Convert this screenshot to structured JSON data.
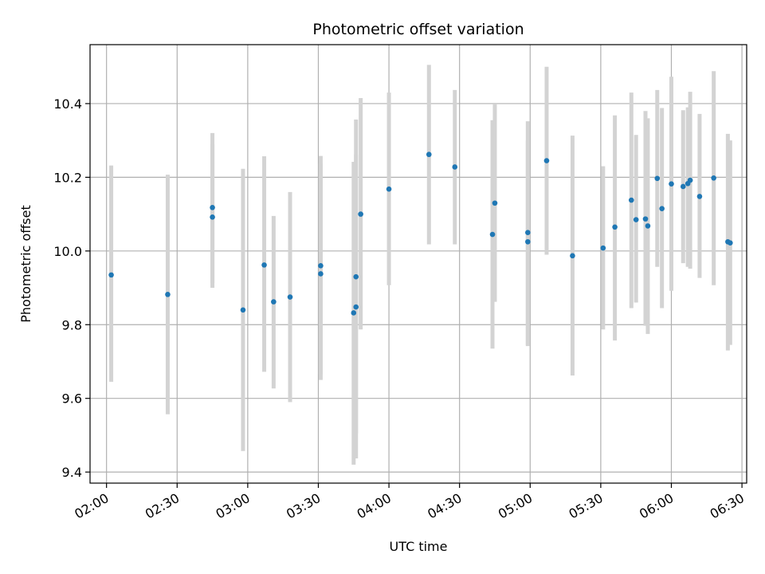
{
  "chart_data": {
    "type": "scatter",
    "title": "Photometric offset variation",
    "xlabel": "UTC time",
    "ylabel": "Photometric offset",
    "x_unit": "UTC time (HH:MM)",
    "xlim": [
      "01:53",
      "06:32"
    ],
    "ylim": [
      9.37,
      10.56
    ],
    "x_ticks": [
      "02:00",
      "02:30",
      "03:00",
      "03:30",
      "04:00",
      "04:30",
      "05:00",
      "05:30",
      "06:00",
      "06:30"
    ],
    "y_ticks": [
      9.4,
      9.6,
      9.8,
      10.0,
      10.2,
      10.4
    ],
    "y_tick_labels": [
      "9.4",
      "9.6",
      "9.8",
      "10.0",
      "10.2",
      "10.4"
    ],
    "grid": true,
    "point_color": "#1f77b4",
    "errorbar_color": "#d3d3d3",
    "series": [
      {
        "points": [
          {
            "x": "02:02",
            "y": 9.935,
            "ylow": 9.645,
            "yhigh": 10.232
          },
          {
            "x": "02:26",
            "y": 9.882,
            "ylow": 9.557,
            "yhigh": 10.207
          },
          {
            "x": "02:45",
            "y": 10.118,
            "ylow": 9.913,
            "yhigh": 10.32
          },
          {
            "x": "02:45",
            "y": 10.092,
            "ylow": 9.9,
            "yhigh": 10.29
          },
          {
            "x": "02:58",
            "y": 9.84,
            "ylow": 9.457,
            "yhigh": 10.223
          },
          {
            "x": "03:07",
            "y": 9.962,
            "ylow": 9.672,
            "yhigh": 10.257
          },
          {
            "x": "03:11",
            "y": 9.862,
            "ylow": 9.627,
            "yhigh": 10.095
          },
          {
            "x": "03:18",
            "y": 9.875,
            "ylow": 9.59,
            "yhigh": 10.16
          },
          {
            "x": "03:31",
            "y": 9.938,
            "ylow": 9.65,
            "yhigh": 10.238
          },
          {
            "x": "03:31",
            "y": 9.96,
            "ylow": 9.665,
            "yhigh": 10.258
          },
          {
            "x": "03:45",
            "y": 9.832,
            "ylow": 9.42,
            "yhigh": 10.242
          },
          {
            "x": "03:46",
            "y": 9.848,
            "ylow": 9.505,
            "yhigh": 10.262
          },
          {
            "x": "03:46",
            "y": 9.93,
            "ylow": 9.437,
            "yhigh": 10.357
          },
          {
            "x": "03:48",
            "y": 10.1,
            "ylow": 9.787,
            "yhigh": 10.415
          },
          {
            "x": "04:00",
            "y": 10.168,
            "ylow": 9.907,
            "yhigh": 10.43
          },
          {
            "x": "04:17",
            "y": 10.262,
            "ylow": 10.018,
            "yhigh": 10.505
          },
          {
            "x": "04:28",
            "y": 10.228,
            "ylow": 10.018,
            "yhigh": 10.437
          },
          {
            "x": "04:44",
            "y": 10.045,
            "ylow": 9.735,
            "yhigh": 10.355
          },
          {
            "x": "04:45",
            "y": 10.13,
            "ylow": 9.862,
            "yhigh": 10.4
          },
          {
            "x": "04:59",
            "y": 10.05,
            "ylow": 9.742,
            "yhigh": 10.352
          },
          {
            "x": "04:59",
            "y": 10.025,
            "ylow": 9.745,
            "yhigh": 10.3
          },
          {
            "x": "05:07",
            "y": 10.245,
            "ylow": 9.99,
            "yhigh": 10.5
          },
          {
            "x": "05:18",
            "y": 9.987,
            "ylow": 9.662,
            "yhigh": 10.313
          },
          {
            "x": "05:31",
            "y": 10.008,
            "ylow": 9.787,
            "yhigh": 10.23
          },
          {
            "x": "05:36",
            "y": 10.065,
            "ylow": 9.757,
            "yhigh": 10.368
          },
          {
            "x": "05:43",
            "y": 10.138,
            "ylow": 9.845,
            "yhigh": 10.43
          },
          {
            "x": "05:45",
            "y": 10.085,
            "ylow": 9.86,
            "yhigh": 10.315
          },
          {
            "x": "05:49",
            "y": 10.087,
            "ylow": 9.797,
            "yhigh": 10.38
          },
          {
            "x": "05:50",
            "y": 10.068,
            "ylow": 9.775,
            "yhigh": 10.36
          },
          {
            "x": "05:54",
            "y": 10.197,
            "ylow": 9.957,
            "yhigh": 10.437
          },
          {
            "x": "05:56",
            "y": 10.115,
            "ylow": 9.845,
            "yhigh": 10.388
          },
          {
            "x": "06:00",
            "y": 10.182,
            "ylow": 9.892,
            "yhigh": 10.473
          },
          {
            "x": "06:05",
            "y": 10.175,
            "ylow": 9.967,
            "yhigh": 10.382
          },
          {
            "x": "06:07",
            "y": 10.183,
            "ylow": 9.957,
            "yhigh": 10.39
          },
          {
            "x": "06:08",
            "y": 10.192,
            "ylow": 9.952,
            "yhigh": 10.432
          },
          {
            "x": "06:12",
            "y": 10.148,
            "ylow": 9.927,
            "yhigh": 10.372
          },
          {
            "x": "06:18",
            "y": 10.198,
            "ylow": 9.907,
            "yhigh": 10.488
          },
          {
            "x": "06:24",
            "y": 10.025,
            "ylow": 9.73,
            "yhigh": 10.318
          },
          {
            "x": "06:25",
            "y": 10.022,
            "ylow": 9.745,
            "yhigh": 10.3
          }
        ]
      }
    ]
  }
}
